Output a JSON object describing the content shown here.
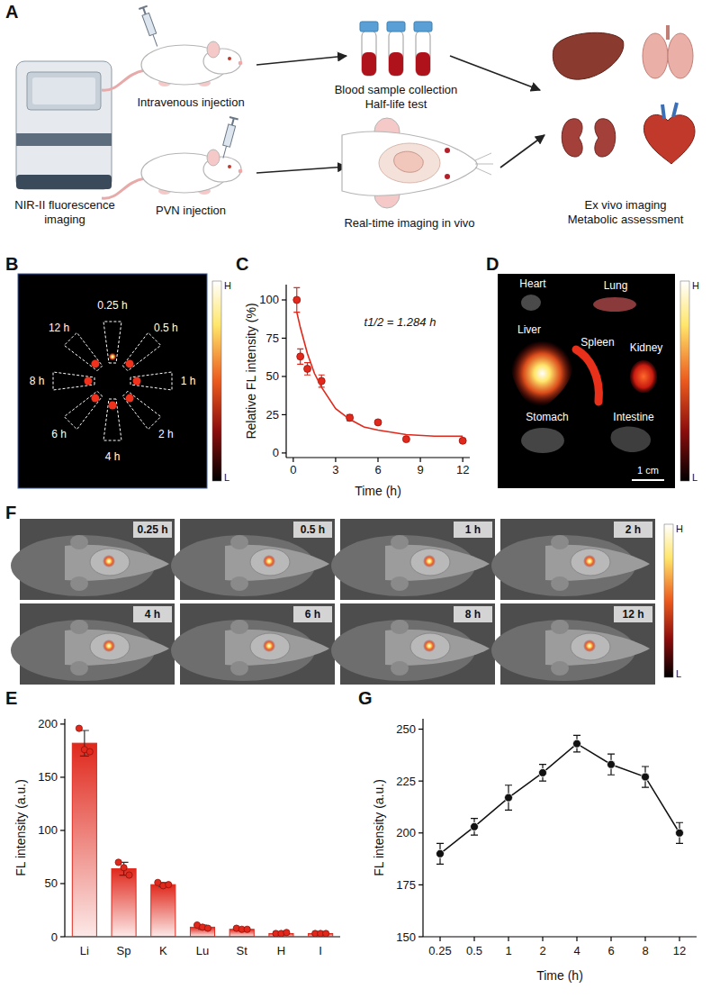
{
  "panel_labels": [
    "A",
    "B",
    "C",
    "D",
    "E",
    "F",
    "G"
  ],
  "diagram": {
    "instrument_label": "NIR-II fluorescence imaging",
    "iv_label": "Intravenous injection",
    "pvn_label": "PVN injection",
    "blood_label": [
      "Blood sample collection",
      "Half-life test"
    ],
    "realtime_label": "Real-time imaging in vivo",
    "exvivo_label": [
      "Ex vivo imaging",
      "Metabolic assessment"
    ]
  },
  "image_B": {
    "time_labels": [
      "0.25 h",
      "0.5 h",
      "1 h",
      "2 h",
      "4 h",
      "6 h",
      "8 h",
      "12 h"
    ],
    "colorbar": [
      "H",
      "L"
    ]
  },
  "image_D": {
    "organ_labels": [
      "Heart",
      "Lung",
      "Liver",
      "Spleen",
      "Kidney",
      "Stomach",
      "Intestine"
    ],
    "scale_bar": "1 cm",
    "colorbar": [
      "H",
      "L"
    ]
  },
  "image_F": {
    "time_labels": [
      "0.25 h",
      "0.5 h",
      "1 h",
      "2 h",
      "4 h",
      "6 h",
      "8 h",
      "12 h"
    ],
    "colorbar": [
      "H",
      "L"
    ]
  },
  "chart_data": [
    {
      "type": "scatter",
      "xlabel": "Time (h)",
      "ylabel": "Relative FL intensity (%)",
      "annotation": "t1/2 = 1.284 h",
      "xlim": [
        -0.5,
        12.5
      ],
      "ylim": [
        -3,
        110
      ],
      "xticks": [
        0,
        3,
        6,
        9,
        12
      ],
      "yticks": [
        0,
        25,
        50,
        75,
        100
      ],
      "series": [
        {
          "type": "scatter",
          "color": "#e0281c",
          "marker": "circle",
          "x": [
            0.25,
            0.5,
            1,
            2,
            4,
            6,
            8,
            12
          ],
          "values": [
            100,
            63,
            55,
            47,
            23,
            20,
            9,
            8
          ],
          "errors": [
            8,
            5,
            4,
            4,
            2,
            1,
            1,
            1
          ]
        },
        {
          "type": "line",
          "color": "#e0281c",
          "x": [
            0.25,
            0.5,
            1,
            1.5,
            2,
            3,
            4,
            5,
            6,
            8,
            10,
            12
          ],
          "values": [
            92,
            82,
            65,
            52,
            43,
            29,
            22,
            17,
            15,
            12,
            11,
            11
          ]
        }
      ]
    },
    {
      "type": "bar",
      "ylabel": "FL intensity (a.u.)",
      "categories": [
        "Li",
        "Sp",
        "K",
        "Lu",
        "St",
        "H",
        "I"
      ],
      "values": [
        182,
        64,
        49,
        9,
        7,
        3,
        3
      ],
      "errors": [
        12,
        6,
        2,
        2,
        1,
        1,
        1
      ],
      "replicates": [
        [
          196,
          176,
          174
        ],
        [
          70,
          65,
          58
        ],
        [
          51,
          48,
          49
        ],
        [
          11,
          9,
          8
        ],
        [
          8,
          7,
          7
        ],
        [
          3,
          3,
          4
        ],
        [
          3,
          3,
          3
        ]
      ],
      "color": "#e0281c",
      "ylim": [
        0,
        205
      ],
      "yticks": [
        0,
        50,
        100,
        150,
        200
      ]
    },
    {
      "type": "line",
      "xlabel": "Time (h)",
      "ylabel": "FL intensity (a.u.)",
      "categories": [
        "0.25",
        "0.5",
        "1",
        "2",
        "4",
        "6",
        "8",
        "12"
      ],
      "values": [
        190,
        203,
        217,
        229,
        243,
        233,
        227,
        200
      ],
      "errors": [
        5,
        4,
        6,
        4,
        4,
        5,
        5,
        5
      ],
      "color": "#111111",
      "marker": "circle",
      "ylim": [
        150,
        255
      ],
      "yticks": [
        150,
        175,
        200,
        225,
        250
      ]
    }
  ]
}
